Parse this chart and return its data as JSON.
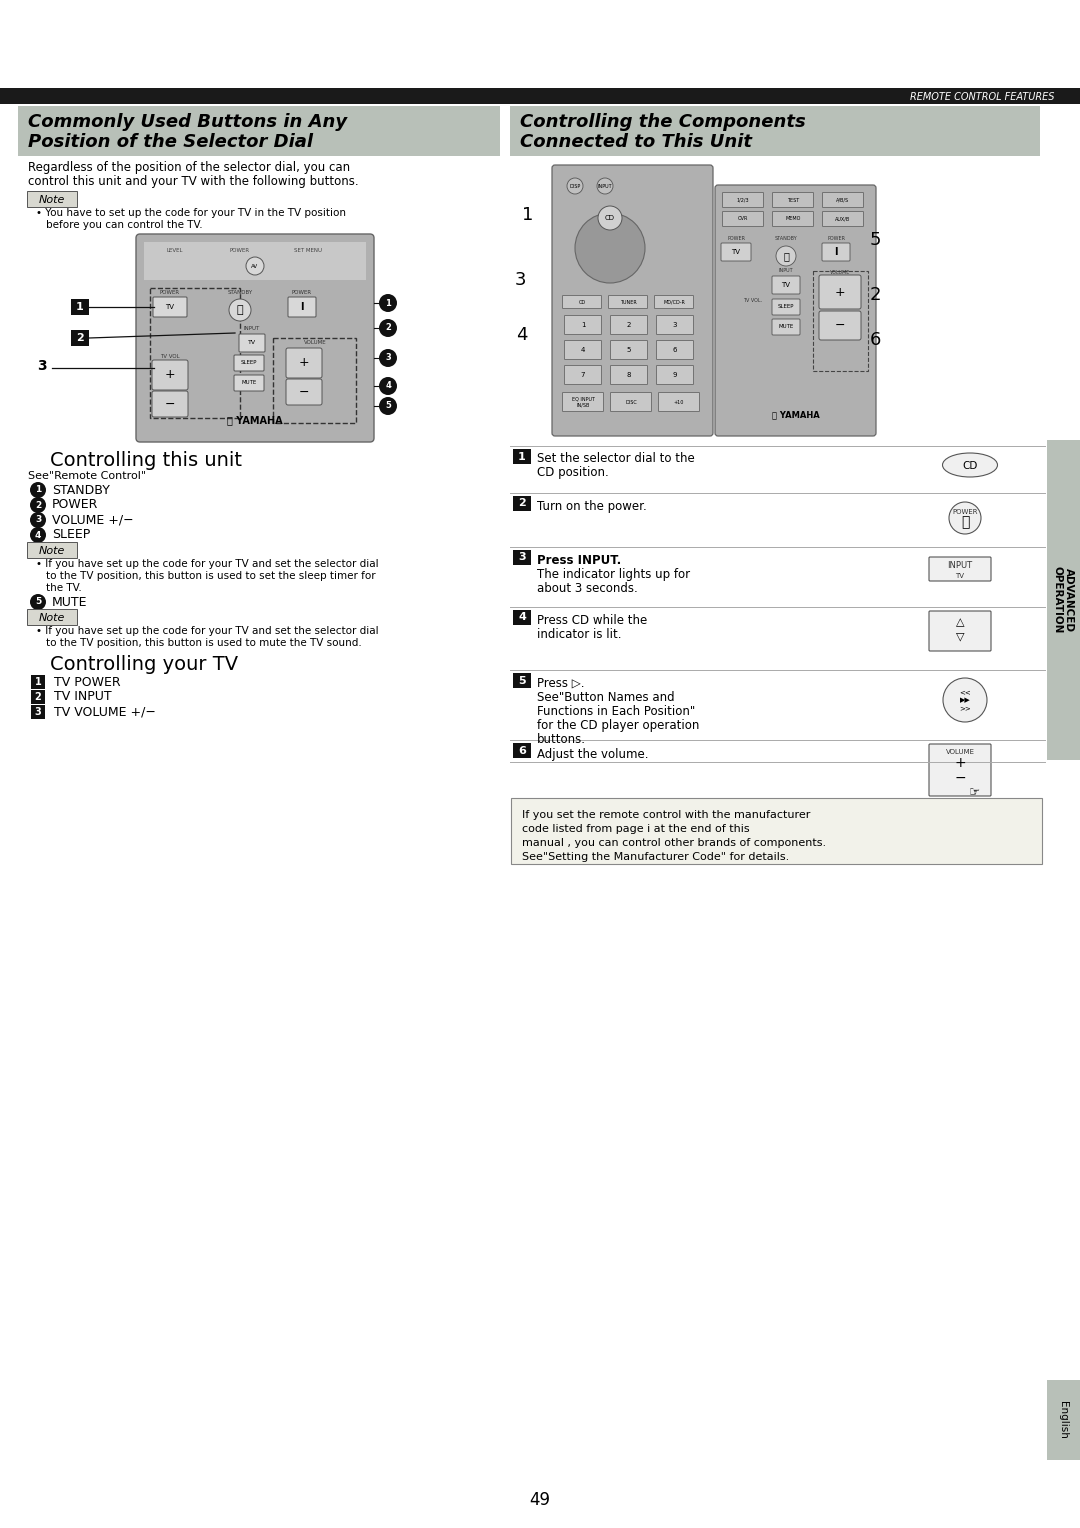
{
  "page_bg": "#ffffff",
  "header_bg": "#1a1a1a",
  "header_text": "REMOTE CONTROL FEATURES",
  "header_text_color": "#ffffff",
  "section1_bg": "#b8c0b8",
  "section1_title_line1": "Commonly Used Buttons in Any",
  "section1_title_line2": "Position of the Selector Dial",
  "section2_bg": "#b8c0b8",
  "section2_title_line1": "Controlling the Components",
  "section2_title_line2": "Connected to This Unit",
  "body_text_color": "#000000",
  "note_bg": "#d8d8d0",
  "sidebar_bg": "#b8c0b8",
  "sidebar_text": "ADVANCED\nOPERATION",
  "page_number": "49",
  "english_tab_bg": "#b8c0b8",
  "english_text": "English",
  "remote_body_color": "#aaaaaa",
  "remote_edge_color": "#555555"
}
